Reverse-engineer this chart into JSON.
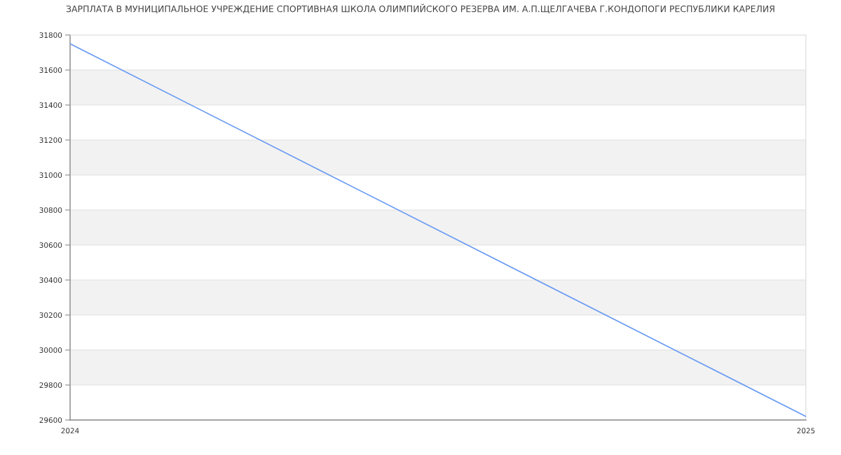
{
  "chart_data": {
    "type": "line",
    "title": "ЗАРПЛАТА В МУНИЦИПАЛЬНОЕ УЧРЕЖДЕНИЕ СПОРТИВНАЯ ШКОЛА ОЛИМПИЙСКОГО РЕЗЕРВА ИМ. А.П.ЩЕЛГАЧЕВА Г.КОНДОПОГИ РЕСПУБЛИКИ КАРЕЛИЯ",
    "x": [
      2024,
      2025
    ],
    "series": [
      {
        "color": "#6a9bf4",
        "values": [
          31750,
          29620
        ]
      }
    ],
    "xlim": [
      2024,
      2025
    ],
    "xticks": [
      2024,
      2025
    ],
    "ylim": [
      29600,
      31800
    ],
    "yticks": [
      29600,
      29800,
      30000,
      30200,
      30400,
      30600,
      30800,
      31000,
      31200,
      31400,
      31600,
      31800
    ],
    "grid": true,
    "marker": "none",
    "line_style": "solid"
  }
}
